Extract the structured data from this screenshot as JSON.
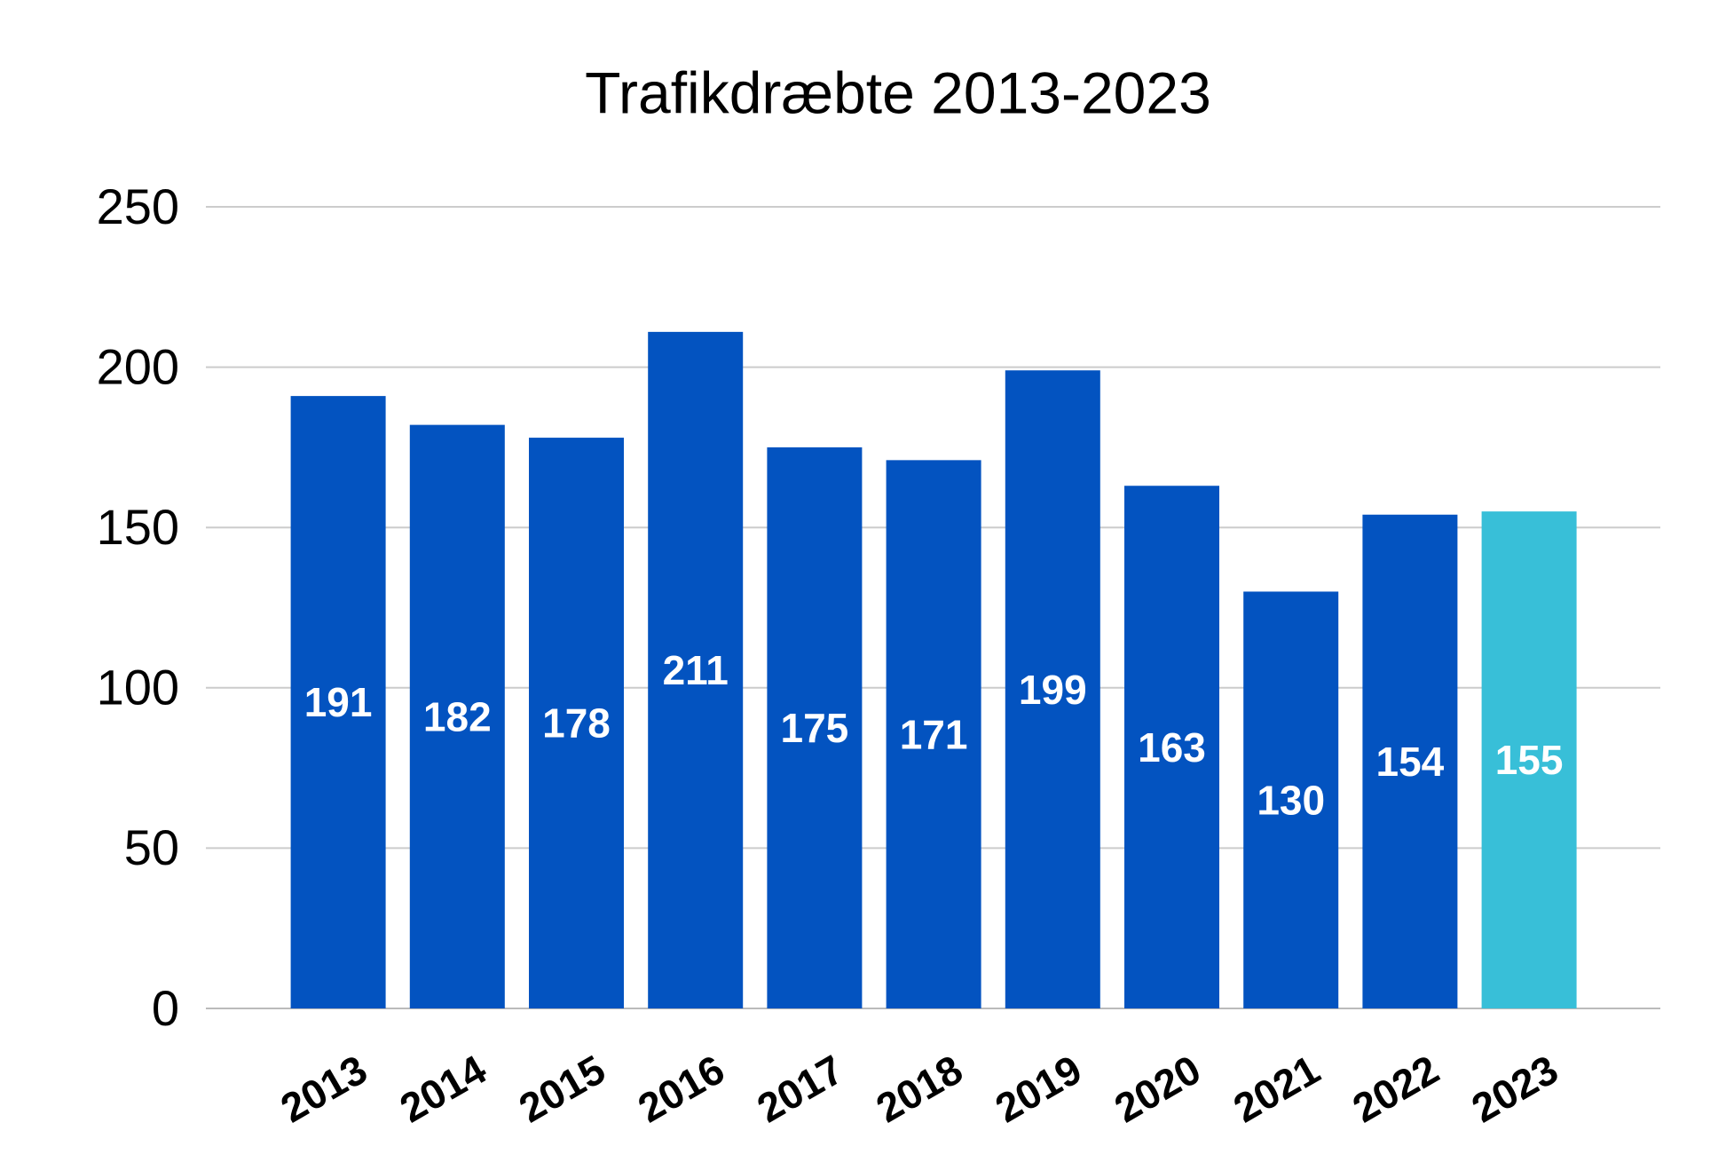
{
  "chart_data": {
    "type": "bar",
    "title": "Trafikdræbte 2013-2023",
    "categories": [
      "2013",
      "2014",
      "2015",
      "2016",
      "2017",
      "2018",
      "2019",
      "2020",
      "2021",
      "2022",
      "2023"
    ],
    "values": [
      191,
      182,
      178,
      211,
      175,
      171,
      199,
      163,
      130,
      154,
      155
    ],
    "colors": [
      "#0353c0",
      "#0353c0",
      "#0353c0",
      "#0353c0",
      "#0353c0",
      "#0353c0",
      "#0353c0",
      "#0353c0",
      "#0353c0",
      "#0353c0",
      "#38bfd8"
    ],
    "ylim": [
      0,
      250
    ],
    "yticks": [
      0,
      50,
      100,
      150,
      200,
      250
    ],
    "grid": true
  }
}
